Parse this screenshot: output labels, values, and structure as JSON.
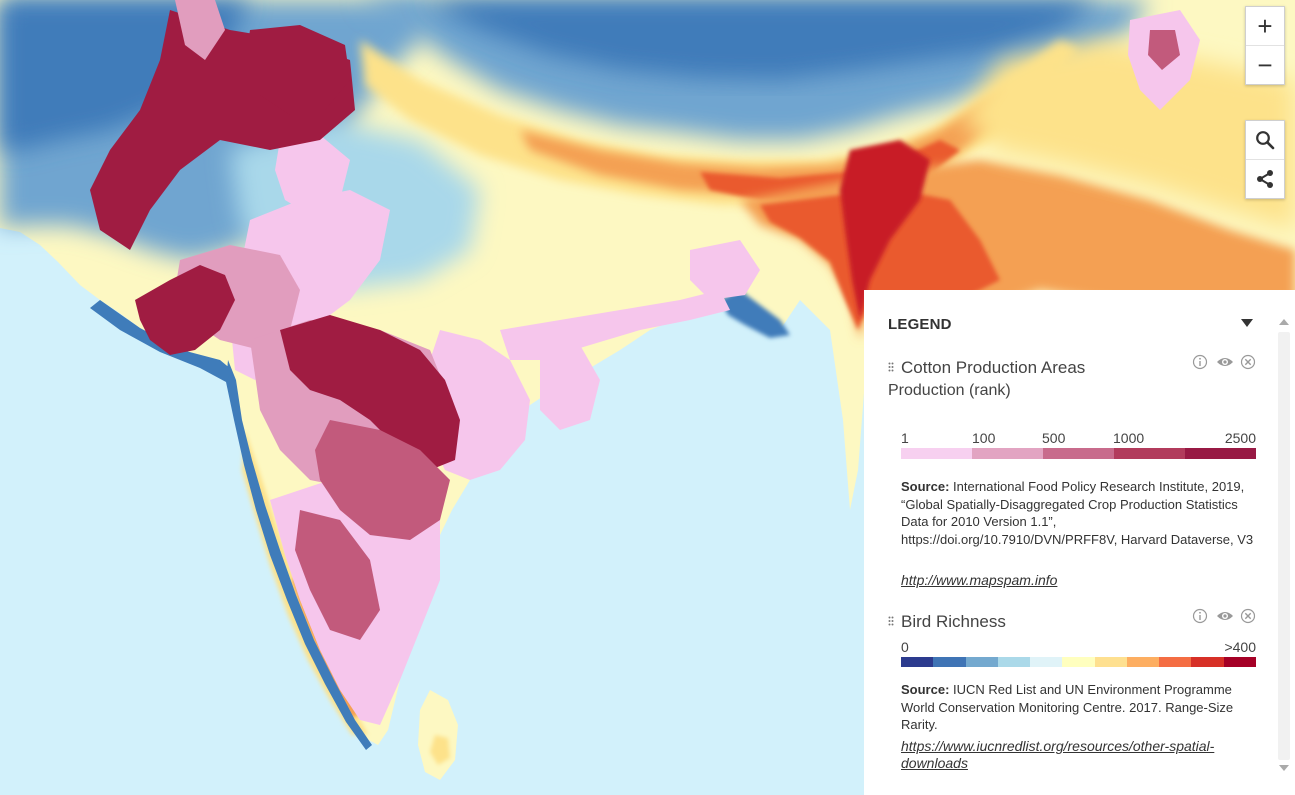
{
  "map": {
    "colors": {
      "ocean": "#d2f1fb",
      "deep_ocean": "#3f7cba",
      "mid_blue": "#6fa5d0",
      "pale_blue": "#a9d8ea",
      "pale_yellow": "#fdf8c2",
      "yellow": "#fde28a",
      "orange": "#f4a053",
      "red_orange": "#ea5a2e",
      "red": "#c81f26",
      "cotton_pale": "#f6c6ec",
      "cotton_pink": "#e19dbe",
      "cotton_mid": "#c25a7c",
      "cotton_dark": "#a01c42"
    }
  },
  "controls": {
    "zoom_in": "+",
    "zoom_out": "−",
    "zoom_in_icon": "plus-icon",
    "zoom_out_icon": "minus-icon",
    "search_icon": "search-icon",
    "share_icon": "share-icon"
  },
  "legend": {
    "header": "LEGEND",
    "layers": [
      {
        "title": "Cotton Production Areas",
        "subtitle": "Production (rank)",
        "scale_labels": [
          "1",
          "100",
          "500",
          "1000",
          "2500"
        ],
        "colors": [
          "#f7d0f0",
          "#e2a4c2",
          "#c86b8c",
          "#b23b5c",
          "#981944"
        ],
        "source_label": "Source:",
        "source_text": " International Food Policy Research Institute, 2019, “Global Spatially-Disaggregated Crop Production Statistics Data for 2010 Version 1.1”, https://doi.org/10.7910/DVN/PRFF8V, Harvard Dataverse, V3",
        "link": "http://www.mapspam.info"
      },
      {
        "title": "Bird Richness",
        "scale_labels": [
          "0",
          ">400"
        ],
        "colors": [
          "#2c3b8e",
          "#3f74b5",
          "#74a9cf",
          "#abd9e9",
          "#e0f3f8",
          "#ffffbf",
          "#fee090",
          "#fdae61",
          "#f46d43",
          "#d73027",
          "#a50026"
        ],
        "source_label": "Source:",
        "source_text": " IUCN Red List and UN Environment Programme World Conservation Monitoring Centre. 2017. Range-Size Rarity.",
        "link": "https://www.iucnredlist.org/resources/other-spatial-downloads"
      }
    ]
  }
}
